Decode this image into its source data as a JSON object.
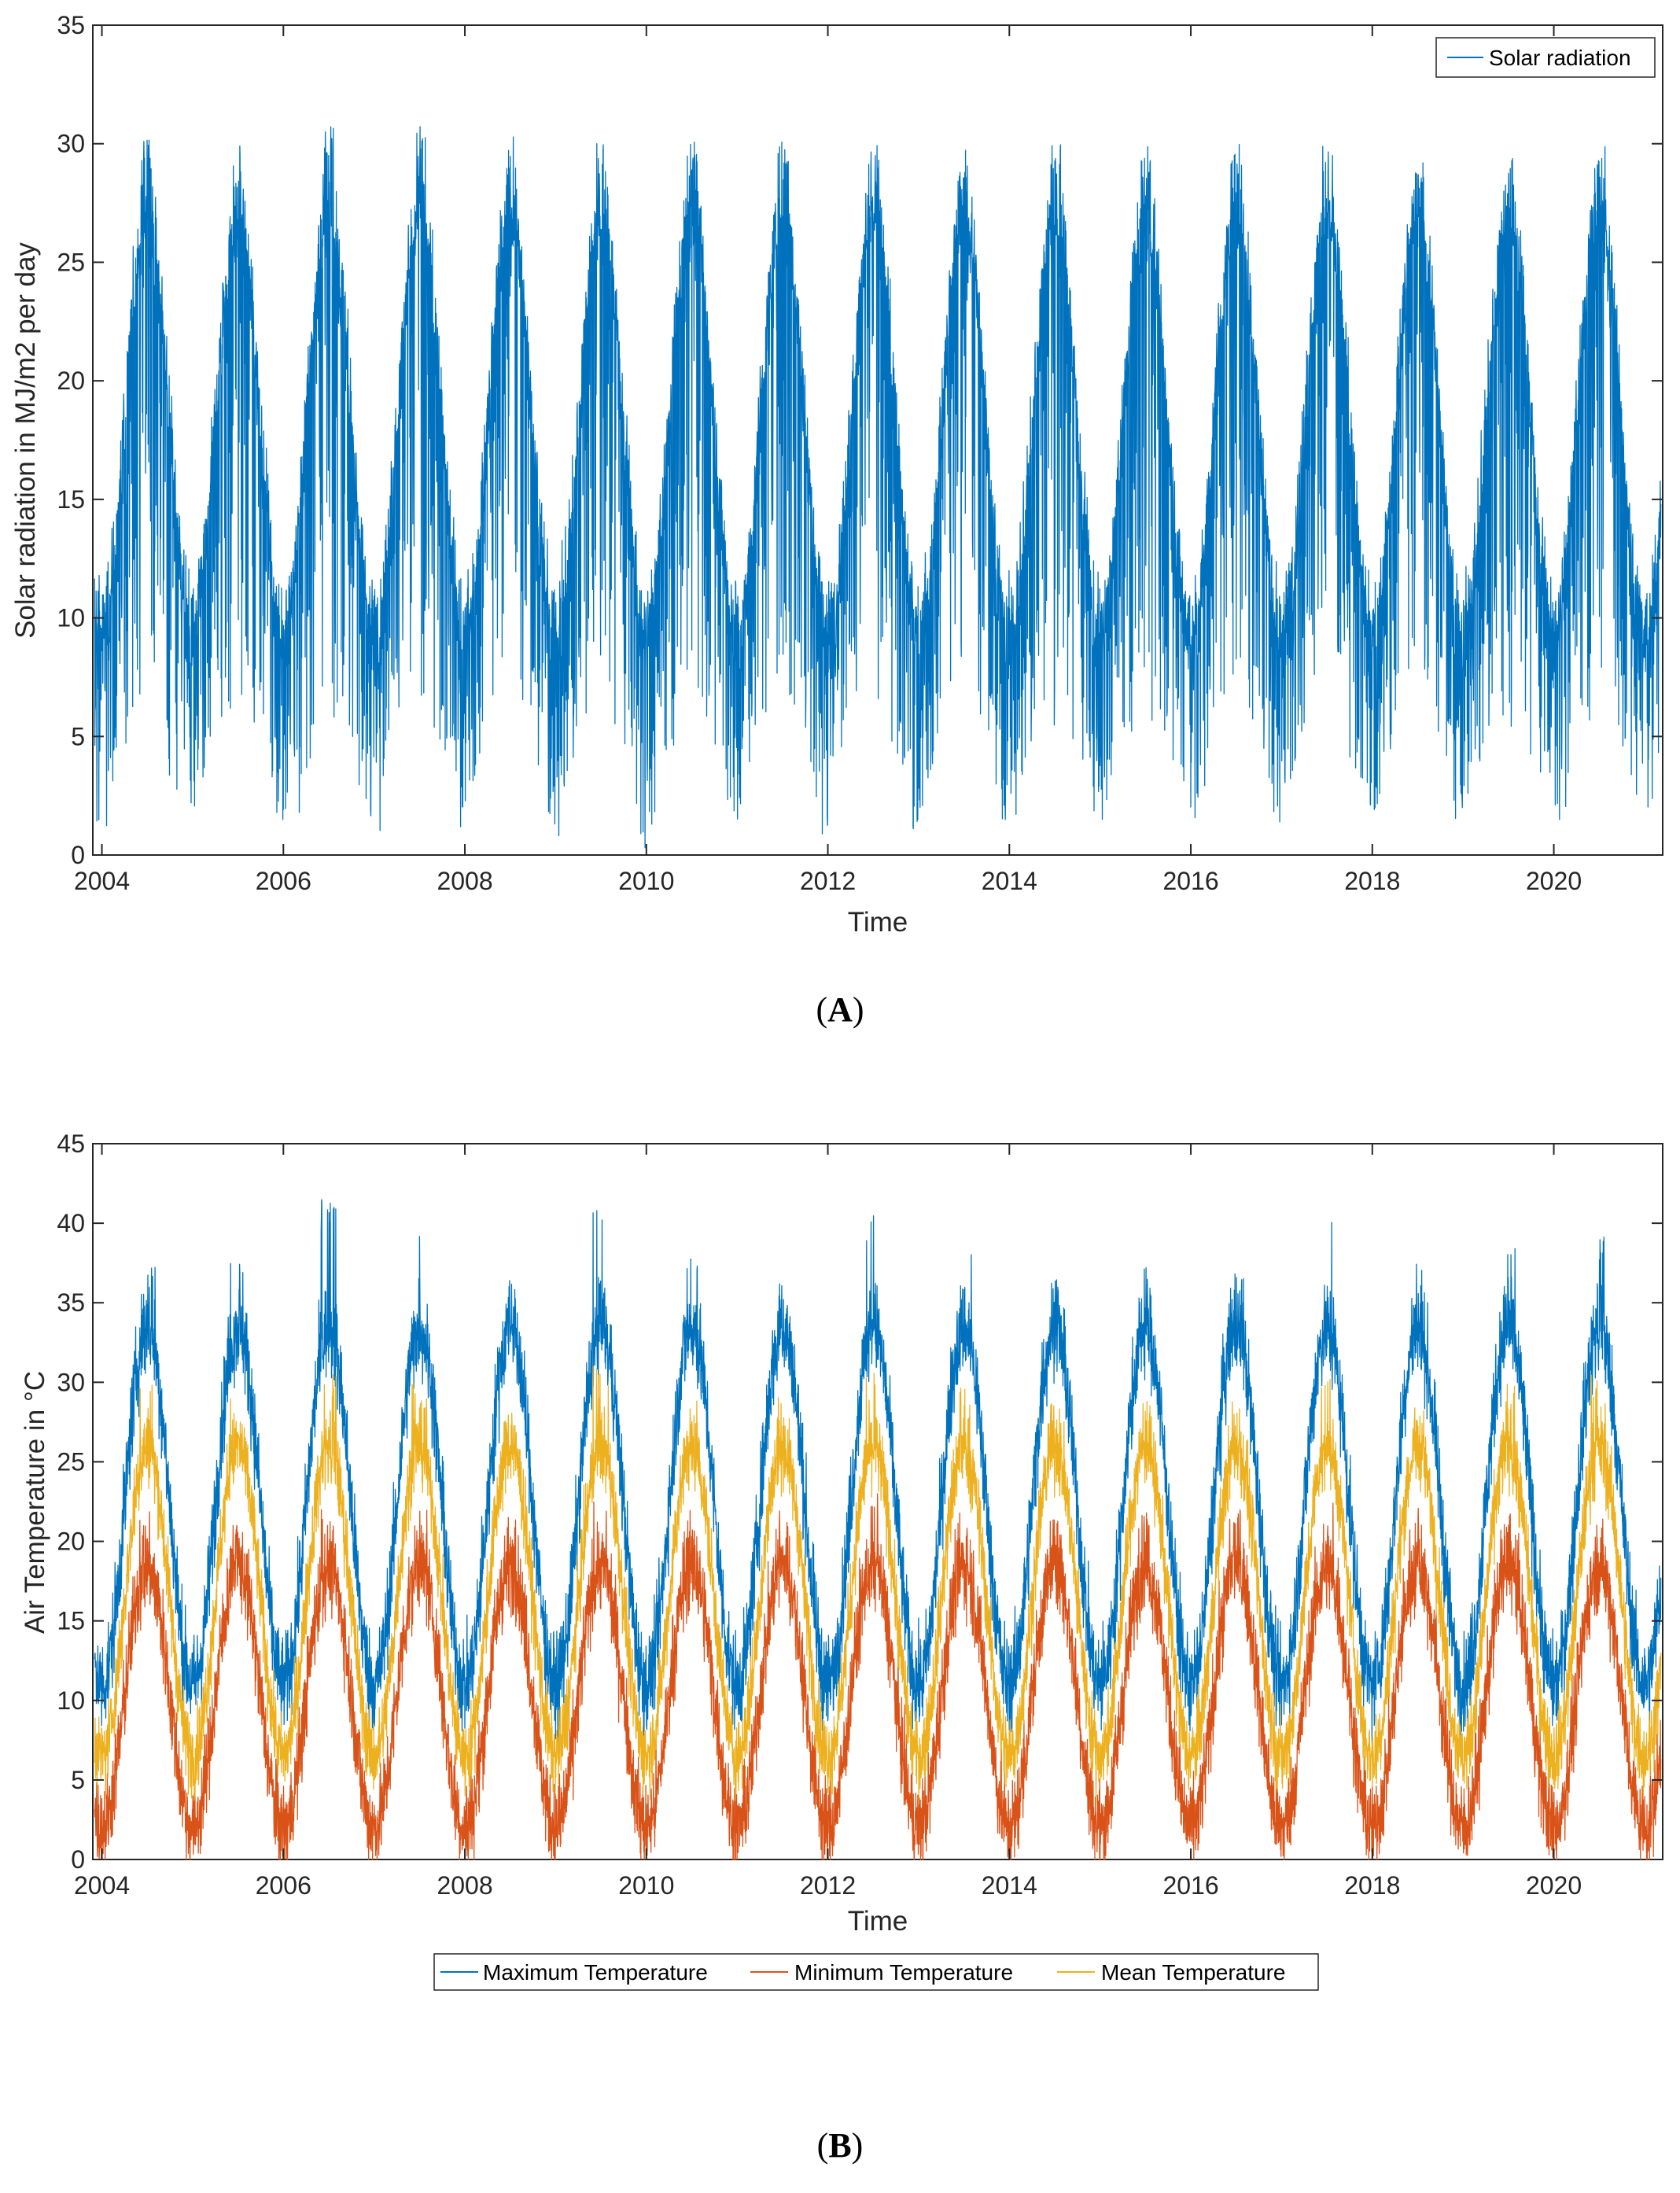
{
  "colors": {
    "solar": "#0072BD",
    "max_temp": "#0072BD",
    "min_temp": "#D95319",
    "mean_temp": "#EDB120",
    "axis": "#262626"
  },
  "chart_data": [
    {
      "type": "line",
      "panel": "(A)",
      "panel_letter": "A",
      "title": "",
      "xlabel": "Time",
      "ylabel": "Solar radiation in MJ/m2 per day",
      "xlim": [
        2003.9,
        2021.2
      ],
      "ylim": [
        0,
        35
      ],
      "xticks": [
        2004,
        2006,
        2008,
        2010,
        2012,
        2014,
        2016,
        2018,
        2020
      ],
      "xtick_labels": [
        "2004",
        "2006",
        "2008",
        "2010",
        "2012",
        "2014",
        "2016",
        "2018",
        "2020"
      ],
      "yticks": [
        0,
        5,
        10,
        15,
        20,
        25,
        30,
        35
      ],
      "ytick_labels": [
        "0",
        "5",
        "10",
        "15",
        "20",
        "25",
        "30",
        "35"
      ],
      "legend_position": "top-right",
      "series": [
        {
          "name": "Solar radiation",
          "description_of_pattern": "daily values, annual cycle",
          "annual_peak_month": 6,
          "annual_peaks": [
            30.2,
            30.1,
            30.9,
            30.8,
            30.4,
            30.0,
            30.1,
            30.1,
            30.0,
            30.0,
            30.0,
            30.0,
            30.0,
            30.0,
            30.0,
            30.0,
            30.0
          ],
          "annual_trough_lows": [
            1.0,
            0.8,
            0.6,
            0.7,
            1.2,
            0.3,
            1.0,
            0.2,
            1.0,
            1.0,
            1.2,
            1.5,
            0.7,
            2.0,
            1.5,
            1.2,
            1.5
          ],
          "typical_winter_level": 9.5,
          "typical_summer_level": 27.0
        }
      ]
    },
    {
      "type": "line",
      "panel": "(B)",
      "panel_letter": "B",
      "title": "",
      "xlabel": "Time",
      "ylabel": "Air Temperature in °C",
      "xlim": [
        2003.9,
        2021.2
      ],
      "ylim": [
        0,
        45
      ],
      "xticks": [
        2004,
        2006,
        2008,
        2010,
        2012,
        2014,
        2016,
        2018,
        2020
      ],
      "xtick_labels": [
        "2004",
        "2006",
        "2008",
        "2010",
        "2012",
        "2014",
        "2016",
        "2018",
        "2020"
      ],
      "yticks": [
        0,
        5,
        10,
        15,
        20,
        25,
        30,
        35,
        40,
        45
      ],
      "ytick_labels": [
        "0",
        "5",
        "10",
        "15",
        "20",
        "25",
        "30",
        "35",
        "40",
        "45"
      ],
      "legend_position": "bottom-outside",
      "series": [
        {
          "name": "Maximum Temperature",
          "annual_peaks": [
            37.5,
            38.5,
            41.5,
            39.5,
            36.5,
            42.0,
            38.0,
            36.5,
            40.5,
            38.5,
            36.5,
            37.5,
            37.0,
            40.5,
            37.5,
            38.5,
            39.5
          ],
          "typical_winter_level": 11.0,
          "typical_summer_level": 33.5
        },
        {
          "name": "Minimum Temperature",
          "annual_peaks": [
            22.0,
            21.0,
            22.5,
            22.0,
            21.5,
            22.5,
            22.0,
            22.0,
            23.0,
            22.5,
            21.5,
            22.0,
            22.0,
            23.0,
            22.5,
            22.0,
            22.0
          ],
          "typical_winter_level": 2.0,
          "typical_summer_level": 18.5
        },
        {
          "name": "Mean Temperature",
          "annual_peaks": [
            30.0,
            29.0,
            31.0,
            30.0,
            29.0,
            31.0,
            30.0,
            29.5,
            31.5,
            30.0,
            29.0,
            30.0,
            30.0,
            31.0,
            30.0,
            30.5,
            30.5
          ],
          "typical_winter_level": 6.5,
          "typical_summer_level": 26.0
        }
      ]
    }
  ],
  "labels": {
    "panel_a": "(A)",
    "panel_b": "(B)"
  }
}
